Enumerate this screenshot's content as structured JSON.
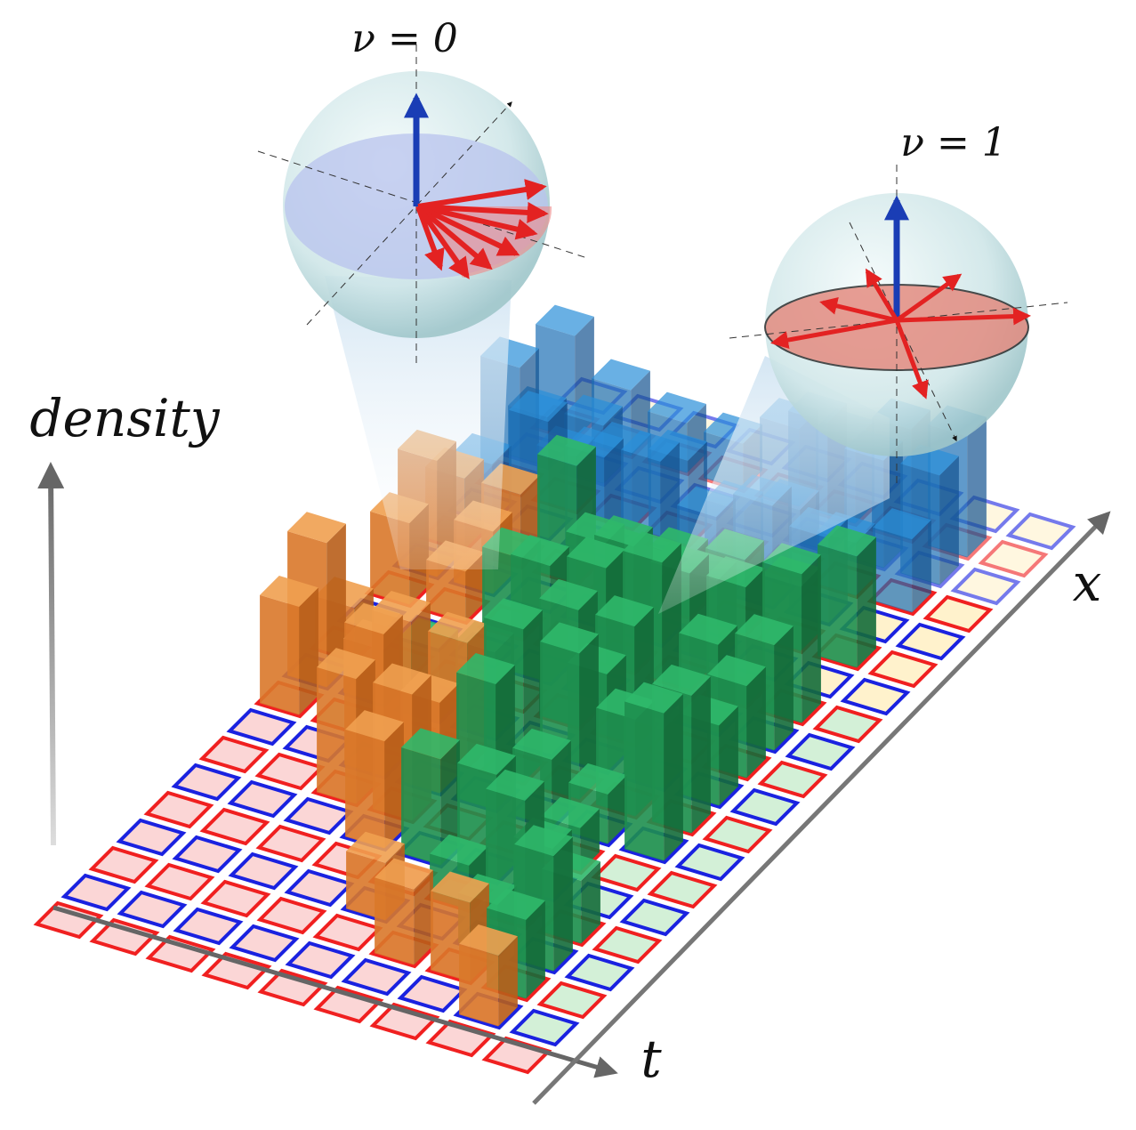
{
  "labels": {
    "nu0": "ν = 0",
    "nu1": "ν = 1",
    "density": "density",
    "x": "x",
    "t": "t"
  }
}
